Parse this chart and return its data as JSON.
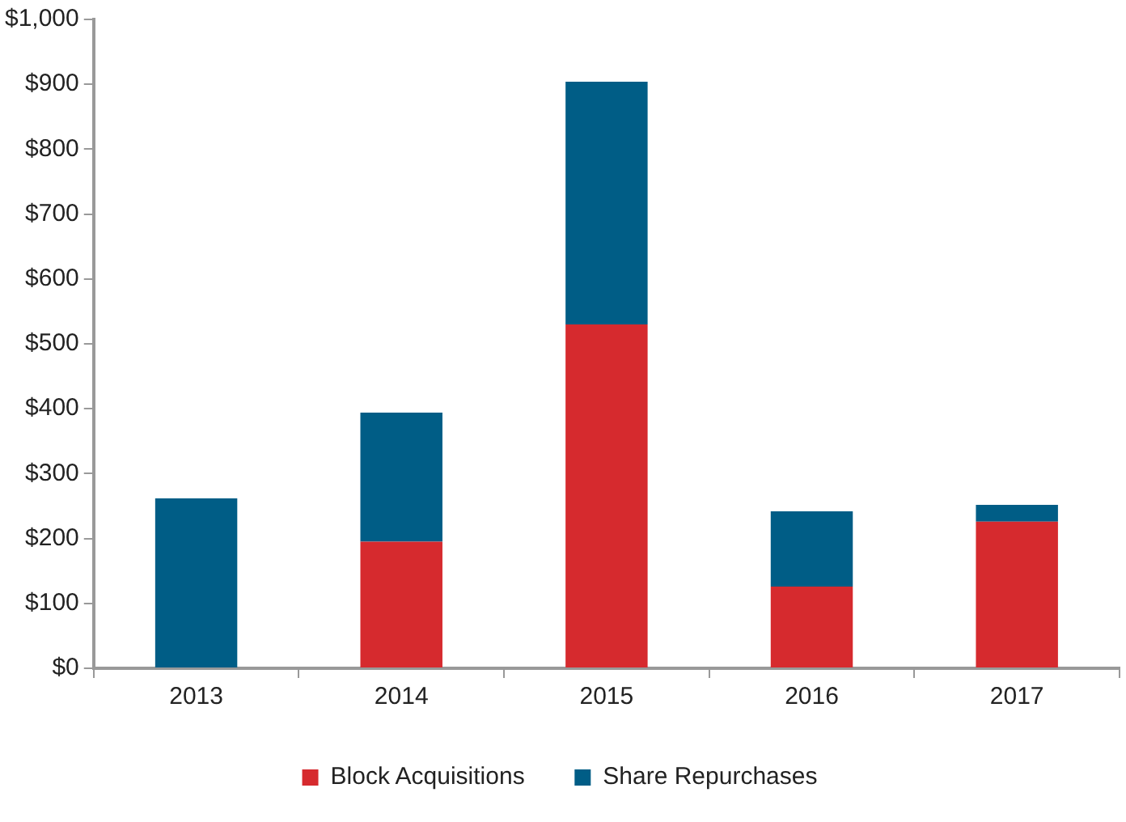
{
  "chart_data": {
    "type": "bar",
    "stacked": true,
    "categories": [
      "2013",
      "2014",
      "2015",
      "2016",
      "2017"
    ],
    "series": [
      {
        "name": "Block Acquisitions",
        "color": "#d62a2e",
        "values": [
          0,
          195,
          530,
          126,
          226
        ]
      },
      {
        "name": "Share Repurchases",
        "color": "#005d86",
        "values": [
          262,
          199,
          374,
          116,
          26
        ]
      }
    ],
    "ylim": [
      0,
      1000
    ],
    "yticks": [
      {
        "value": 0,
        "label": "$0"
      },
      {
        "value": 100,
        "label": "$100"
      },
      {
        "value": 200,
        "label": "$200"
      },
      {
        "value": 300,
        "label": "$300"
      },
      {
        "value": 400,
        "label": "$400"
      },
      {
        "value": 500,
        "label": "$500"
      },
      {
        "value": 600,
        "label": "$600"
      },
      {
        "value": 700,
        "label": "$700"
      },
      {
        "value": 800,
        "label": "$800"
      },
      {
        "value": 900,
        "label": "$900"
      },
      {
        "value": 1000,
        "label": "$1,000"
      }
    ],
    "grid": false,
    "legend": "bottom"
  }
}
